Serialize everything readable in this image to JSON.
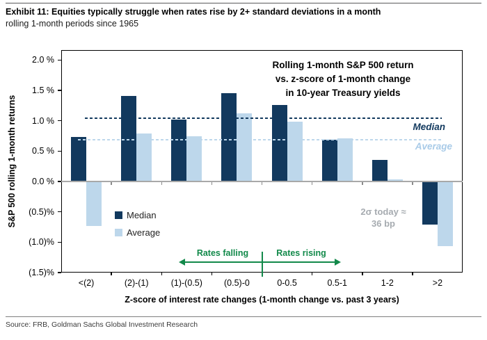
{
  "header": {
    "exhibit_title": "Exhibit 11: Equities typically struggle when rates rise by 2+ standard deviations in a month",
    "subtitle": "rolling 1-month periods since 1965"
  },
  "source": "Source: FRB, Goldman Sachs Global Investment Research",
  "chart_data": {
    "type": "bar",
    "title": "Rolling 1-month S&P 500 return\nvs. z-score of 1-month change\nin 10-year Treasury yields",
    "ylabel": "S&P 500 rolling 1-month returns",
    "xlabel": "Z-score of interest rate changes (1-month change vs. past 3 years)",
    "categories": [
      "<(2)",
      "(2)-(1)",
      "(1)-(0.5)",
      "(0.5)-0",
      "0-0.5",
      "0.5-1",
      "1-2",
      ">2"
    ],
    "series": [
      {
        "name": "Median",
        "color": "#12395e",
        "values": [
          0.73,
          1.41,
          1.02,
          1.45,
          1.26,
          0.69,
          0.36,
          -0.71
        ]
      },
      {
        "name": "Average",
        "color": "#bdd7eb",
        "values": [
          -0.73,
          0.79,
          0.75,
          1.12,
          0.98,
          0.71,
          0.04,
          -1.07
        ]
      }
    ],
    "reference_lines": [
      {
        "label": "Median",
        "value": 1.04,
        "color": "#12395e"
      },
      {
        "label": "Average",
        "value": 0.69,
        "color": "#bdd7eb"
      }
    ],
    "y_ticks": [
      {
        "value": 2.0,
        "label": "2.0 %"
      },
      {
        "value": 1.5,
        "label": "1.5 %"
      },
      {
        "value": 1.0,
        "label": "1.0 %"
      },
      {
        "value": 0.5,
        "label": "0.5 %"
      },
      {
        "value": 0.0,
        "label": "0.0 %"
      },
      {
        "value": -0.5,
        "label": "(0.5)%"
      },
      {
        "value": -1.0,
        "label": "(1.0)%"
      },
      {
        "value": -1.5,
        "label": "(1.5)%"
      }
    ],
    "ylim": [
      -1.5,
      2.165
    ],
    "grid": false,
    "legend_position": "inside-left-below-zero",
    "annotations": {
      "rates_falling": "Rates falling",
      "rates_rising": "Rates rising",
      "sigma_note": "2σ today ≈\n36 bp"
    },
    "colors": {
      "median_navy": "#12395e",
      "average_light_blue": "#bdd7eb",
      "rates_green": "#12894a",
      "note_gray": "#a6abb0",
      "zero_line_gray": "#a8a8a8"
    }
  }
}
